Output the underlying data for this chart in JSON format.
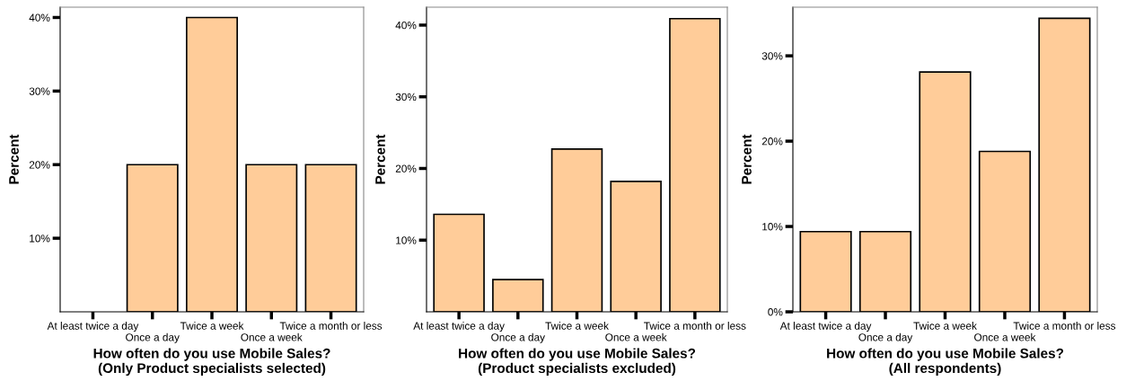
{
  "chart_data": [
    {
      "type": "bar",
      "xlabel": "How often do you use Mobile Sales?\n(Only Product specialists selected)",
      "ylabel": "Percent",
      "categories": [
        "At least twice a day",
        "Once a day",
        "Twice a week",
        "Once a week",
        "Twice a month or less"
      ],
      "values": [
        0,
        20,
        40,
        20,
        20
      ],
      "color": "#ffcc99",
      "ylim": [
        0,
        41.4
      ],
      "yticks": [
        {
          "value": 10,
          "label": "10%"
        },
        {
          "value": 20,
          "label": "20%"
        },
        {
          "value": 30,
          "label": "30%"
        },
        {
          "value": 40,
          "label": "40%"
        }
      ],
      "grid": false,
      "legend": false
    },
    {
      "type": "bar",
      "xlabel": "How often do you use Mobile Sales?\n(Product specialists excluded)",
      "ylabel": "Percent",
      "categories": [
        "At least twice a day",
        "Once a day",
        "Twice a week",
        "Once a week",
        "Twice a month or less"
      ],
      "values": [
        13.6,
        4.5,
        22.7,
        18.2,
        40.9
      ],
      "color": "#ffcc99",
      "ylim": [
        0,
        42.5
      ],
      "yticks": [
        {
          "value": 10,
          "label": "10%"
        },
        {
          "value": 20,
          "label": "20%"
        },
        {
          "value": 30,
          "label": "30%"
        },
        {
          "value": 40,
          "label": "40%"
        }
      ],
      "grid": false,
      "legend": false
    },
    {
      "type": "bar",
      "xlabel": "How often do you use Mobile Sales?\n(All respondents)",
      "ylabel": "Percent",
      "categories": [
        "At least twice a day",
        "Once a day",
        "Twice a week",
        "Once a week",
        "Twice a month or less"
      ],
      "values": [
        9.4,
        9.4,
        28.1,
        18.8,
        34.4
      ],
      "color": "#ffcc99",
      "ylim": [
        0,
        35.7
      ],
      "yticks": [
        {
          "value": 0,
          "label": "0%"
        },
        {
          "value": 10,
          "label": "10%"
        },
        {
          "value": 20,
          "label": "20%"
        },
        {
          "value": 30,
          "label": "30%"
        }
      ],
      "grid": false,
      "legend": false
    }
  ]
}
